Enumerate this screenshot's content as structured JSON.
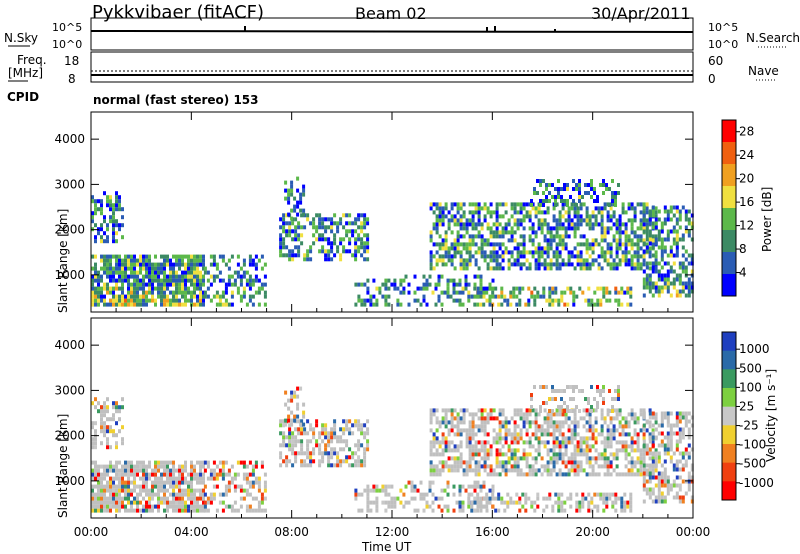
{
  "header": {
    "title": "Pykkvibaer (fitACF)",
    "beam": "Beam 02",
    "date": "30/Apr/2011"
  },
  "top_panels": {
    "nsky_label": "N.Sky",
    "nsky_ticks": [
      "10^5",
      "10^0"
    ],
    "nsearch_label": "N.Search",
    "nsearch_ticks": [
      "10^5",
      "10^0"
    ],
    "freq_label_1": "Freq.",
    "freq_label_2": "[MHz]",
    "freq_ticks": [
      "18",
      "8"
    ],
    "nave_label": "Nave",
    "nave_ticks": [
      "60",
      "0"
    ],
    "cpid_label": "CPID",
    "cpid_value": "normal (fast stereo) 153"
  },
  "colors": {
    "power_scale": [
      "#0000ff",
      "#2a5cb4",
      "#3c8a64",
      "#5cb84a",
      "#f0e040",
      "#f0a020",
      "#f06010",
      "#ff0000"
    ],
    "velocity_scale": [
      "#1f3fbf",
      "#2a6aa8",
      "#3a9a60",
      "#7dd040",
      "#c8c8c8",
      "#f0d030",
      "#f08020",
      "#f04010",
      "#ff0000"
    ],
    "ground_scatter": "#c0c0c0"
  },
  "chart_data": [
    {
      "type": "heatmap",
      "panel": "power",
      "ylabel": "Slant Range [km]",
      "xlabel": "Time UT",
      "x_ticks": [
        "00:00",
        "04:00",
        "08:00",
        "12:00",
        "16:00",
        "20:00",
        "00:00"
      ],
      "y_ticks": [
        "1000",
        "2000",
        "3000",
        "4000"
      ],
      "ylim": [
        180,
        4600
      ],
      "colorbar_label": "Power [dB]",
      "colorbar_ticks": [
        "4",
        "8",
        "12",
        "16",
        "20",
        "24",
        "28"
      ],
      "colorbar_range": [
        0,
        30
      ]
    },
    {
      "type": "heatmap",
      "panel": "velocity",
      "ylabel": "Slant Range [km]",
      "xlabel": "Time UT",
      "x_ticks": [
        "00:00",
        "04:00",
        "08:00",
        "12:00",
        "16:00",
        "20:00",
        "00:00"
      ],
      "y_ticks": [
        "1000",
        "2000",
        "3000",
        "4000"
      ],
      "ylim": [
        180,
        4600
      ],
      "colorbar_label": "Velocity [m s⁻¹]",
      "colorbar_ticks": [
        "1000",
        "500",
        "100",
        "25",
        "-25",
        "-100",
        "-500",
        "-1000"
      ],
      "colorbar_range": [
        -1000,
        1000
      ]
    }
  ]
}
